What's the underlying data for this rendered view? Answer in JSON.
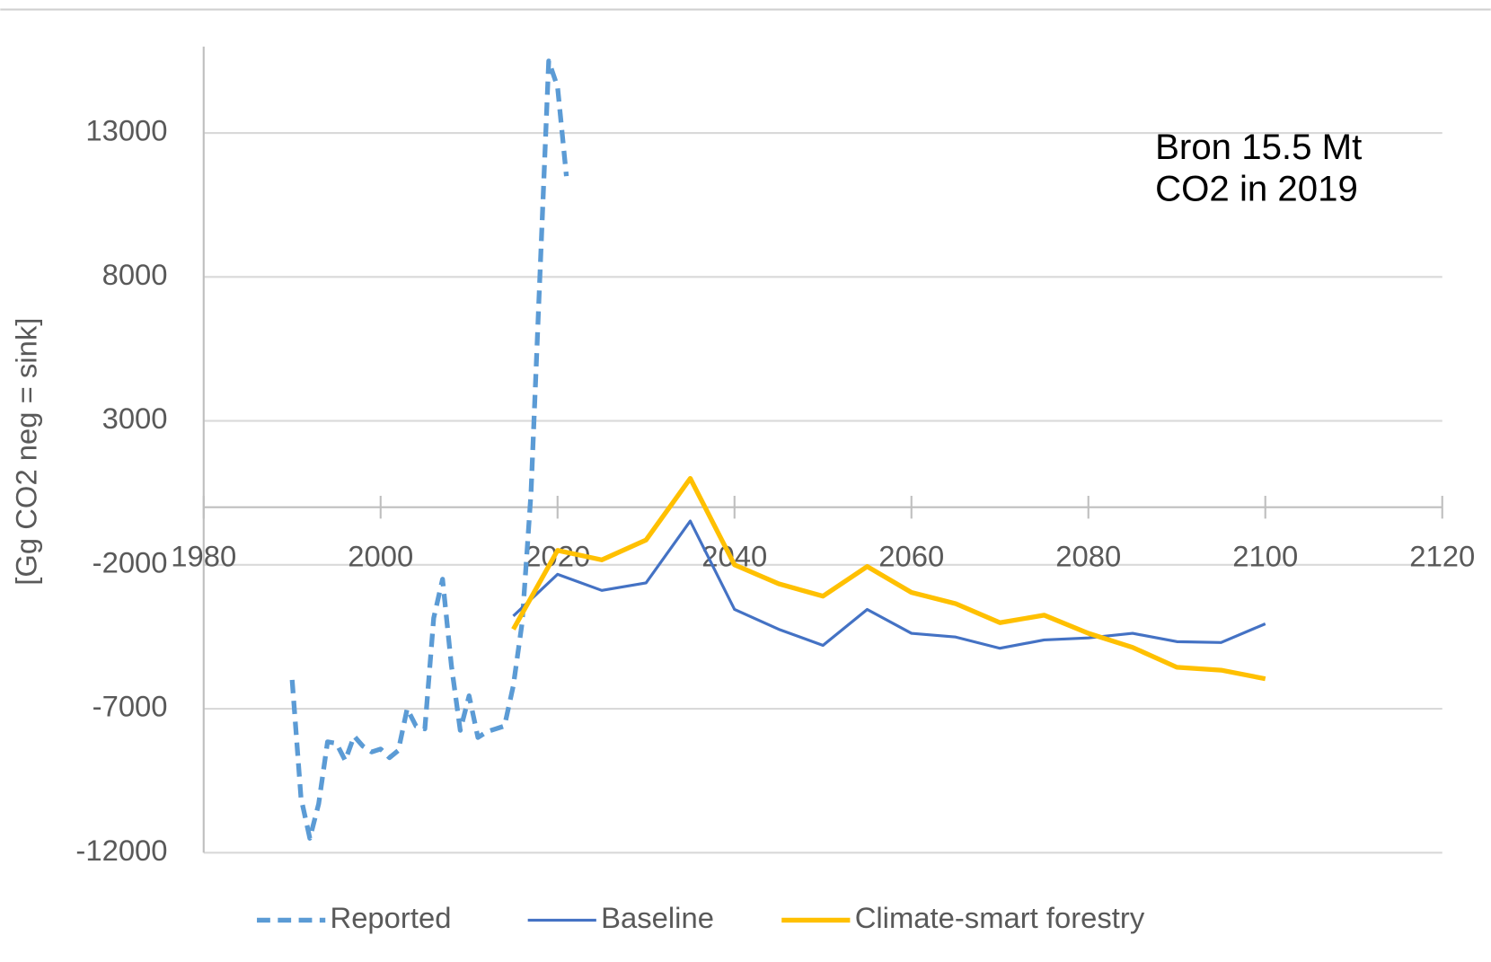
{
  "chart_data": {
    "type": "line",
    "y_label": "[Gg CO2 neg = sink]",
    "annotation": [
      "Bron 15.5 Mt",
      "CO2 in 2019"
    ],
    "xlim": [
      1980,
      2120
    ],
    "xticks": [
      1980,
      2000,
      2020,
      2040,
      2060,
      2080,
      2100,
      2120
    ],
    "ylim": [
      -12000,
      16000
    ],
    "yticks": [
      -12000,
      -7000,
      -2000,
      3000,
      8000,
      13000
    ],
    "grid": true,
    "legend": "bottom",
    "series": [
      {
        "name": "Reported",
        "color": "#5b9bd5",
        "dashed": true,
        "x": [
          1990,
          1991,
          1992,
          1993,
          1994,
          1995,
          1996,
          1997,
          1998,
          1999,
          2000,
          2001,
          2002,
          2003,
          2004,
          2005,
          2006,
          2007,
          2008,
          2009,
          2010,
          2011,
          2012,
          2013,
          2014,
          2015,
          2016,
          2017,
          2018,
          2019,
          2020,
          2021
        ],
        "values": [
          -6000,
          -10100,
          -11500,
          -10300,
          -8150,
          -8200,
          -8800,
          -7950,
          -8300,
          -8500,
          -8400,
          -8700,
          -8450,
          -7000,
          -7600,
          -7700,
          -3850,
          -2500,
          -5500,
          -7750,
          -6550,
          -8000,
          -7800,
          -7700,
          -7600,
          -6200,
          -4000,
          500,
          8000,
          15500,
          14600,
          11500
        ]
      },
      {
        "name": "Baseline",
        "color": "#4472c4",
        "x": [
          2015,
          2020,
          2025,
          2030,
          2035,
          2040,
          2045,
          2050,
          2055,
          2060,
          2065,
          2070,
          2075,
          2080,
          2085,
          2090,
          2095,
          2100
        ],
        "values": [
          -3780,
          -2330,
          -2890,
          -2630,
          -480,
          -3550,
          -4240,
          -4800,
          -3550,
          -4380,
          -4510,
          -4900,
          -4610,
          -4540,
          -4380,
          -4670,
          -4700,
          -4050
        ]
      },
      {
        "name": "Climate-smart forestry",
        "color": "#ffc000",
        "x": [
          2015,
          2020,
          2025,
          2030,
          2035,
          2040,
          2045,
          2050,
          2055,
          2060,
          2065,
          2070,
          2075,
          2080,
          2085,
          2090,
          2095,
          2100
        ],
        "values": [
          -4240,
          -1500,
          -1830,
          -1140,
          1000,
          -2000,
          -2660,
          -3090,
          -2060,
          -2960,
          -3350,
          -4010,
          -3750,
          -4380,
          -4870,
          -5560,
          -5660,
          -5960
        ]
      }
    ]
  }
}
